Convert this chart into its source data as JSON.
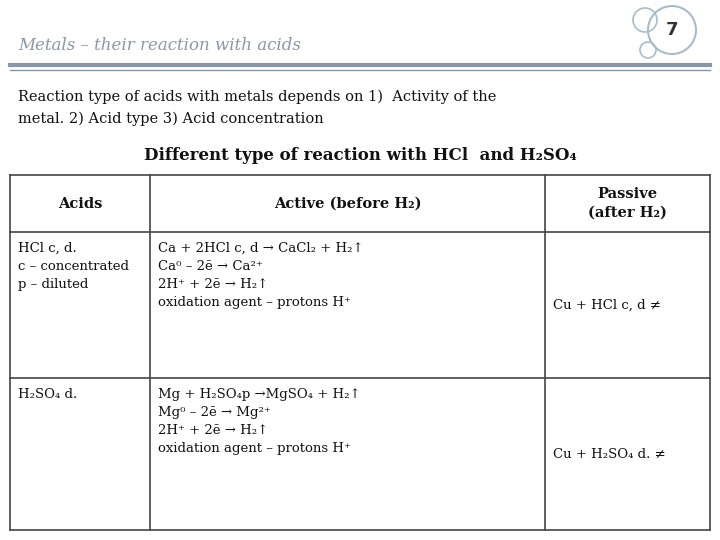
{
  "title": "Metals – their reaction with acids",
  "slide_number": "7",
  "subtitle_line1": "Reaction type of acids with metals depends on 1)  Activity of the",
  "subtitle_line2": "metal. 2) Acid type 3) Acid concentration",
  "table_title": "Different type of reaction with HCl  and H₂SO₄",
  "col_headers": [
    "Acids",
    "Active (before H₂)",
    "Passive\n(after H₂)"
  ],
  "row1_col1_lines": [
    "HCl c, d.",
    "c – concentrated",
    "p – diluted"
  ],
  "row1_col2_lines": [
    "Ca + 2HCl c, d → CaCl₂ + H₂↑",
    "Ca⁰ – 2ē → Ca²⁺",
    "2H⁺ + 2ē → H₂↑",
    "oxidation agent – protons H⁺"
  ],
  "row1_col3": "Cu + HCl c, d ≠",
  "row2_col1_lines": [
    "H₂SO₄ d."
  ],
  "row2_col2_lines": [
    "Mg + H₂SO₄p →MgSO₄ + H₂↑",
    "Mg⁰ – 2ē → Mg²⁺",
    "2H⁺ + 2ē → H₂↑",
    "oxidation agent – protons H⁺"
  ],
  "row2_col3": "Cu + H₂SO₄ d. ≠",
  "bg_color": "#ffffff",
  "title_color": "#8898aa",
  "table_border_color": "#444444",
  "title_font_size": 12,
  "body_font_size": 9.5,
  "header_font_size": 10.5
}
